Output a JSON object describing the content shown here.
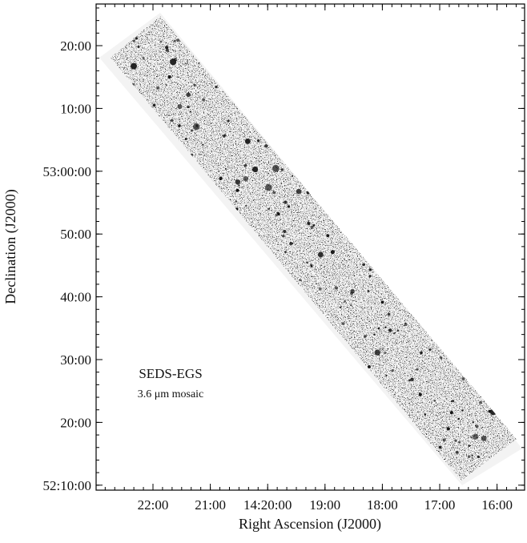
{
  "x_axis": {
    "label": "Right Ascension (J2000)",
    "ticks": [
      "22:00",
      "21:00",
      "14:20:00",
      "19:00",
      "18:00",
      "17:00",
      "16:00"
    ]
  },
  "y_axis": {
    "label": "Declination (J2000)",
    "ticks": [
      "20:00",
      "10:00",
      "53:00:00",
      "50:00",
      "40:00",
      "30:00",
      "20:00",
      "52:10:00"
    ]
  },
  "annotation": {
    "title": "SEDS-EGS",
    "subtitle": "3.6 μm mosaic"
  }
}
